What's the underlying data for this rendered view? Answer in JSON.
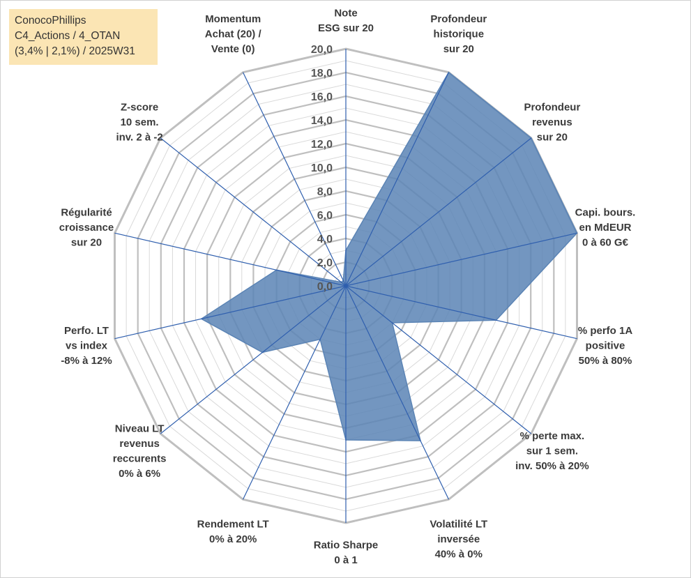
{
  "infobox": {
    "line1": "ConocoPhillips",
    "line2": "C4_Actions / 4_OTAN",
    "line3": "(3,4% | 2,1%) / 2025W31"
  },
  "colors": {
    "fill": "#5b84b5",
    "spoke": "#2f5fae",
    "grid": "#bfbfbf",
    "gridInner": "#d9d9d9",
    "infobox": "#fbe5b4"
  },
  "chart_data": {
    "type": "radar",
    "rmin": 0,
    "rmax": 20,
    "tick_step": 2,
    "tick_labels": [
      "0,0",
      "2,0",
      "4,0",
      "6,0",
      "8,0",
      "10,0",
      "12,0",
      "14,0",
      "16,0",
      "18,0",
      "20,0"
    ],
    "grid": true,
    "categories": [
      [
        "Note",
        "ESG sur 20"
      ],
      [
        "Profondeur",
        "historique",
        "sur 20"
      ],
      [
        "Profondeur",
        "revenus",
        "sur 20"
      ],
      [
        "Capi. bours.",
        "en MdEUR",
        "0 à 60 G€"
      ],
      [
        "% perfo 1A",
        "positive",
        "50% à 80%"
      ],
      [
        "% perte max.",
        "sur 1 sem.",
        "inv. 50% à 20%"
      ],
      [
        "Volatilité LT",
        "inversée",
        "40% à 0%"
      ],
      [
        "Ratio Sharpe",
        "0 à 1"
      ],
      [
        "Rendement LT",
        "0% à 20%"
      ],
      [
        "Niveau LT",
        "revenus",
        "reccurents",
        "0% à 6%"
      ],
      [
        "Perfo. LT",
        "vs index",
        "-8% à 12%"
      ],
      [
        "Régularité",
        "croissance",
        "sur 20"
      ],
      [
        "Z-score",
        "10 sem.",
        "inv. 2 à -2"
      ],
      [
        "Momentum",
        "Achat (20) /",
        "Vente (0)"
      ]
    ],
    "series": [
      {
        "values": [
          3.0,
          20.0,
          20.0,
          20.0,
          13.0,
          5.0,
          14.5,
          13.0,
          5.0,
          9.0,
          12.5,
          6.0,
          0.5,
          0.5
        ]
      }
    ]
  }
}
